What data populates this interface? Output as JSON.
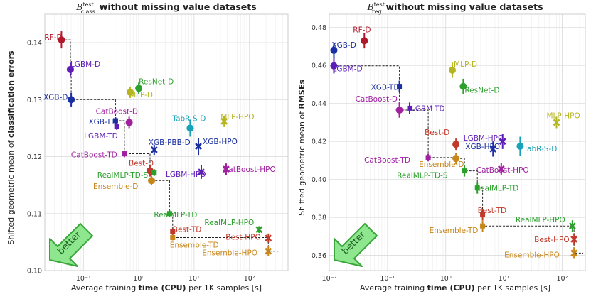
{
  "chart_data": [
    {
      "type": "scatter",
      "title_prefix": "B",
      "title_sup": "test",
      "title_sub": "class",
      "title_suffix": "without missing value datasets",
      "xlabel_pre": "Average training ",
      "xlabel_bold": "time (CPU)",
      "xlabel_post": " per 1K samples [s]",
      "ylabel_pre": "Shifted geometric mean of ",
      "ylabel_bold": "classification errors",
      "xscale": "log",
      "xlim": [
        0.02,
        500
      ],
      "ylim": [
        0.1,
        0.145
      ],
      "xticks": [
        0.1,
        1,
        10,
        100
      ],
      "xtick_labels": [
        "10⁻¹",
        "10⁰",
        "10¹",
        "10²"
      ],
      "yticks": [
        0.1,
        0.11,
        0.12,
        0.13,
        0.14
      ],
      "ytick_labels": [
        "0.10",
        "0.11",
        "0.12",
        "0.13",
        "0.14"
      ],
      "points": [
        {
          "name": "RF-D",
          "x": 0.04,
          "y": 0.1405,
          "err": 0.0015,
          "color": "#b2182b",
          "marker": "circle"
        },
        {
          "name": "LGBM-D",
          "x": 0.058,
          "y": 0.1353,
          "err": 0.0012,
          "color": "#5e1db8",
          "marker": "circle"
        },
        {
          "name": "XGB-D",
          "x": 0.06,
          "y": 0.13,
          "err": 0.0012,
          "color": "#1a2fa0",
          "marker": "circle"
        },
        {
          "name": "ResNet-D",
          "x": 1.0,
          "y": 0.132,
          "err": 0.001,
          "color": "#2ca02c",
          "marker": "circle"
        },
        {
          "name": "MLP-D",
          "x": 0.7,
          "y": 0.1313,
          "err": 0.001,
          "color": "#b5b520",
          "marker": "circle"
        },
        {
          "name": "CatBoost-D",
          "x": 0.67,
          "y": 0.126,
          "err": 0.001,
          "color": "#a020a0",
          "marker": "circle"
        },
        {
          "name": "XGB-TD",
          "x": 0.38,
          "y": 0.1263,
          "err": 0.0006,
          "color": "#1a2fa0",
          "marker": "square"
        },
        {
          "name": "LGBM-TD",
          "x": 0.4,
          "y": 0.1253,
          "err": 0.0006,
          "color": "#5e1db8",
          "marker": "square"
        },
        {
          "name": "TabR-S-D",
          "x": 8.5,
          "y": 0.125,
          "err": 0.0015,
          "color": "#17a2b8",
          "marker": "circle"
        },
        {
          "name": "MLP-HPO",
          "x": 35,
          "y": 0.1262,
          "err": 0.001,
          "color": "#b5b520",
          "marker": "x"
        },
        {
          "name": "XGB-PBB-D",
          "x": 1.9,
          "y": 0.1212,
          "err": 0.0009,
          "color": "#1a2fa0",
          "marker": "x"
        },
        {
          "name": "XGB-HPO",
          "x": 12,
          "y": 0.1218,
          "err": 0.0015,
          "color": "#1a2fa0",
          "marker": "x"
        },
        {
          "name": "CatBoost-TD",
          "x": 0.55,
          "y": 0.1205,
          "err": 0.0006,
          "color": "#a020a0",
          "marker": "square"
        },
        {
          "name": "Best-D",
          "x": 1.6,
          "y": 0.1175,
          "err": 0.001,
          "color": "#c0392b",
          "marker": "circle"
        },
        {
          "name": "RealMLP-TD-S",
          "x": 1.9,
          "y": 0.1172,
          "err": 0.0006,
          "color": "#2ca02c",
          "marker": "square"
        },
        {
          "name": "LGBM-HPO",
          "x": 13.5,
          "y": 0.1173,
          "err": 0.0012,
          "color": "#5e1db8",
          "marker": "x"
        },
        {
          "name": "CatBoost-HPO",
          "x": 38,
          "y": 0.1178,
          "err": 0.001,
          "color": "#a020a0",
          "marker": "x"
        },
        {
          "name": "Ensemble-D",
          "x": 1.7,
          "y": 0.1158,
          "err": 0.0008,
          "color": "#c7861a",
          "marker": "circle"
        },
        {
          "name": "RealMLP-TD",
          "x": 3.6,
          "y": 0.11,
          "err": 0.0006,
          "color": "#2ca02c",
          "marker": "square"
        },
        {
          "name": "Best-TD",
          "x": 4.1,
          "y": 0.1068,
          "err": 0.0006,
          "color": "#c0392b",
          "marker": "square"
        },
        {
          "name": "Ensemble-TD",
          "x": 4.1,
          "y": 0.1058,
          "err": 0.0005,
          "color": "#c7861a",
          "marker": "square"
        },
        {
          "name": "RealMLP-HPO",
          "x": 150,
          "y": 0.1072,
          "err": 0.0006,
          "color": "#2ca02c",
          "marker": "x"
        },
        {
          "name": "Best-HPO",
          "x": 220,
          "y": 0.1057,
          "err": 0.0008,
          "color": "#c0392b",
          "marker": "x"
        },
        {
          "name": "Ensemble-HPO",
          "x": 220,
          "y": 0.1034,
          "err": 0.0009,
          "color": "#c7861a",
          "marker": "x"
        }
      ],
      "frontier": [
        [
          0.04,
          0.1405
        ],
        [
          0.058,
          0.1405
        ],
        [
          0.058,
          0.1353
        ],
        [
          0.06,
          0.1353
        ],
        [
          0.06,
          0.13
        ],
        [
          0.38,
          0.13
        ],
        [
          0.38,
          0.1263
        ],
        [
          0.55,
          0.1263
        ],
        [
          0.55,
          0.1205
        ],
        [
          1.6,
          0.1205
        ],
        [
          1.6,
          0.1175
        ],
        [
          1.7,
          0.1175
        ],
        [
          1.7,
          0.1158
        ],
        [
          3.6,
          0.1158
        ],
        [
          3.6,
          0.11
        ],
        [
          4.1,
          0.11
        ],
        [
          4.1,
          0.1058
        ],
        [
          220,
          0.1058
        ],
        [
          220,
          0.1034
        ],
        [
          330,
          0.1034
        ]
      ],
      "better_label": "better"
    },
    {
      "type": "scatter",
      "title_prefix": "B",
      "title_sup": "test",
      "title_sub": "reg",
      "title_suffix": "without missing value datasets",
      "xlabel_pre": "Average training ",
      "xlabel_bold": "time (CPU)",
      "xlabel_post": " per 1K samples [s]",
      "ylabel_pre": "Shifted geometric mean of ",
      "ylabel_bold": "RMSEs",
      "xscale": "log",
      "xlim": [
        0.01,
        250
      ],
      "ylim": [
        0.352,
        0.487
      ],
      "xticks": [
        0.01,
        0.1,
        1,
        10,
        100
      ],
      "xtick_labels": [
        "10⁻²",
        "10⁻¹",
        "10⁰",
        "10¹",
        "10²"
      ],
      "yticks": [
        0.36,
        0.38,
        0.4,
        0.42,
        0.44,
        0.46,
        0.48
      ],
      "ytick_labels": [
        "0.36",
        "0.38",
        "0.40",
        "0.42",
        "0.44",
        "0.46",
        "0.48"
      ],
      "points": [
        {
          "name": "RF-D",
          "x": 0.04,
          "y": 0.473,
          "err": 0.004,
          "color": "#b2182b",
          "marker": "circle"
        },
        {
          "name": "XGB-D",
          "x": 0.012,
          "y": 0.468,
          "err": 0.004,
          "color": "#1a2fa0",
          "marker": "circle"
        },
        {
          "name": "LGBM-D",
          "x": 0.012,
          "y": 0.4598,
          "err": 0.004,
          "color": "#5e1db8",
          "marker": "circle"
        },
        {
          "name": "MLP-D",
          "x": 1.3,
          "y": 0.4575,
          "err": 0.004,
          "color": "#b5b520",
          "marker": "circle"
        },
        {
          "name": "ResNet-D",
          "x": 2.0,
          "y": 0.449,
          "err": 0.004,
          "color": "#2ca02c",
          "marker": "circle"
        },
        {
          "name": "XGB-TD",
          "x": 0.16,
          "y": 0.449,
          "err": 0.003,
          "color": "#1a2fa0",
          "marker": "square"
        },
        {
          "name": "CatBoost-D",
          "x": 0.16,
          "y": 0.4365,
          "err": 0.004,
          "color": "#a020a0",
          "marker": "circle"
        },
        {
          "name": "LGBM-TD",
          "x": 0.24,
          "y": 0.4375,
          "err": 0.003,
          "color": "#5e1db8",
          "marker": "square"
        },
        {
          "name": "MLP-HPO",
          "x": 80,
          "y": 0.43,
          "err": 0.003,
          "color": "#b5b520",
          "marker": "x"
        },
        {
          "name": "LGBM-HPO",
          "x": 9.5,
          "y": 0.42,
          "err": 0.004,
          "color": "#5e1db8",
          "marker": "x"
        },
        {
          "name": "Best-D",
          "x": 1.5,
          "y": 0.4185,
          "err": 0.003,
          "color": "#c0392b",
          "marker": "circle"
        },
        {
          "name": "XGB-HPO",
          "x": 6.5,
          "y": 0.416,
          "err": 0.004,
          "color": "#1a2fa0",
          "marker": "x"
        },
        {
          "name": "TabR-S-D",
          "x": 19,
          "y": 0.4175,
          "err": 0.005,
          "color": "#17a2b8",
          "marker": "circle"
        },
        {
          "name": "CatBoost-TD",
          "x": 0.5,
          "y": 0.4115,
          "err": 0.002,
          "color": "#a020a0",
          "marker": "square"
        },
        {
          "name": "Ensemble-D",
          "x": 1.5,
          "y": 0.411,
          "err": 0.003,
          "color": "#c7861a",
          "marker": "circle"
        },
        {
          "name": "RealMLP-TD-S",
          "x": 2.1,
          "y": 0.4045,
          "err": 0.003,
          "color": "#2ca02c",
          "marker": "square"
        },
        {
          "name": "CatBoost-HPO",
          "x": 9.0,
          "y": 0.4055,
          "err": 0.003,
          "color": "#a020a0",
          "marker": "x"
        },
        {
          "name": "RealMLP-TD",
          "x": 3.5,
          "y": 0.3955,
          "err": 0.003,
          "color": "#2ca02c",
          "marker": "square"
        },
        {
          "name": "Best-TD",
          "x": 4.3,
          "y": 0.3815,
          "err": 0.003,
          "color": "#c0392b",
          "marker": "square"
        },
        {
          "name": "Ensemble-TD",
          "x": 4.3,
          "y": 0.3755,
          "err": 0.003,
          "color": "#c7861a",
          "marker": "square"
        },
        {
          "name": "RealMLP-HPO",
          "x": 150,
          "y": 0.3755,
          "err": 0.003,
          "color": "#2ca02c",
          "marker": "x"
        },
        {
          "name": "Best-HPO",
          "x": 160,
          "y": 0.3685,
          "err": 0.003,
          "color": "#c0392b",
          "marker": "x"
        },
        {
          "name": "Ensemble-HPO",
          "x": 160,
          "y": 0.3612,
          "err": 0.003,
          "color": "#c7861a",
          "marker": "x"
        }
      ],
      "frontier": [
        [
          0.012,
          0.468
        ],
        [
          0.012,
          0.4598
        ],
        [
          0.16,
          0.4598
        ],
        [
          0.16,
          0.4365
        ],
        [
          0.5,
          0.4365
        ],
        [
          0.5,
          0.4115
        ],
        [
          1.5,
          0.4115
        ],
        [
          1.5,
          0.411
        ],
        [
          2.1,
          0.411
        ],
        [
          2.1,
          0.4045
        ],
        [
          3.5,
          0.4045
        ],
        [
          3.5,
          0.3955
        ],
        [
          4.3,
          0.3955
        ],
        [
          4.3,
          0.3755
        ],
        [
          160,
          0.3755
        ],
        [
          160,
          0.3612
        ],
        [
          230,
          0.3612
        ]
      ],
      "better_label": "better"
    }
  ]
}
